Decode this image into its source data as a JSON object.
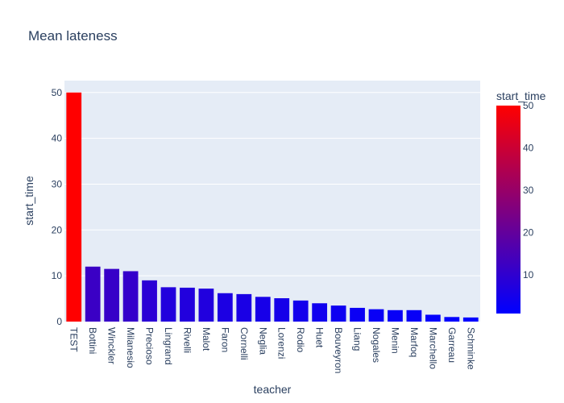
{
  "chart_data": {
    "type": "bar",
    "title": "Mean lateness",
    "xlabel": "teacher",
    "ylabel": "start_time",
    "categories": [
      "TEST",
      "Bottini",
      "Winckler",
      "Milanesio",
      "Precioso",
      "Lingrand",
      "Rivelli",
      "Malot",
      "Faron",
      "Cornelli",
      "Neglia",
      "Lorenzi",
      "Rodio",
      "Huet",
      "Bouveyron",
      "Liang",
      "Nogales",
      "Menin",
      "Marfoq",
      "Marchello",
      "Garreau",
      "Schminke"
    ],
    "values": [
      50,
      12,
      11.5,
      11,
      9,
      7.5,
      7.4,
      7.2,
      6.2,
      6.0,
      5.4,
      5.1,
      4.6,
      4.0,
      3.5,
      3.0,
      2.7,
      2.5,
      2.5,
      1.5,
      1.0,
      0.9
    ],
    "ylim": [
      0,
      52.6
    ],
    "yticks": [
      0,
      10,
      20,
      30,
      40,
      50
    ],
    "grid": true,
    "colorbar": {
      "title": "start_time",
      "min": 0.9,
      "max": 50,
      "ticks": [
        10,
        20,
        30,
        40,
        50
      ],
      "color_low": "#0000ff",
      "color_high": "#ff0000"
    },
    "plot_background": "#e5ecf6",
    "gridline_color": "#ffffff"
  }
}
